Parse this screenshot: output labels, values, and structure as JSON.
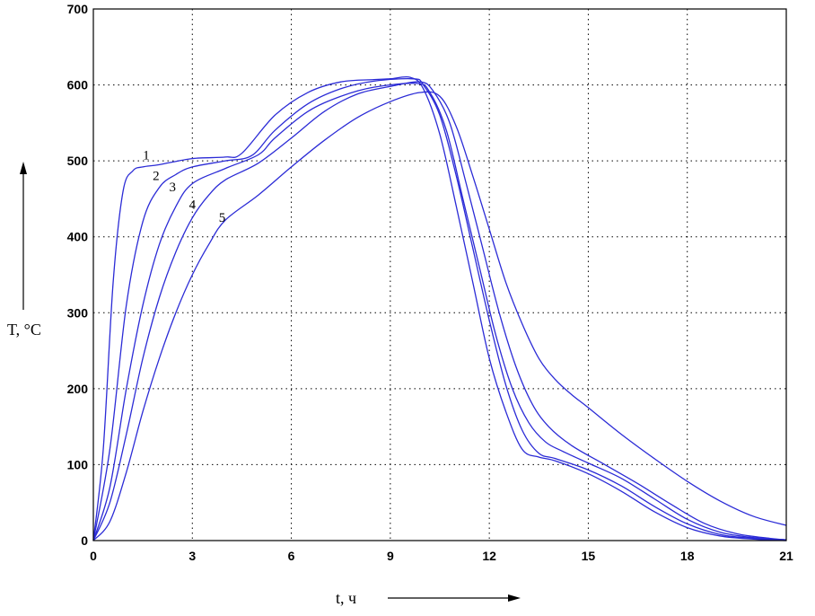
{
  "chart_data": {
    "type": "line",
    "xlabel": "t, ч",
    "ylabel": "T, °C",
    "xlim": [
      0,
      21
    ],
    "ylim": [
      0,
      700
    ],
    "xticks": [
      0,
      3,
      6,
      9,
      12,
      15,
      18,
      21
    ],
    "yticks": [
      0,
      100,
      200,
      300,
      400,
      500,
      600,
      700
    ],
    "grid": true,
    "line_color": "#2b2bd6",
    "series": [
      {
        "name": "1",
        "x": [
          0,
          0.3,
          0.6,
          0.9,
          1.2,
          1.5,
          2,
          3,
          4,
          4.5,
          5.5,
          6.5,
          7.5,
          8.5,
          9,
          9.6,
          10,
          10.5,
          11,
          11.5,
          12,
          12.5,
          13,
          13.5,
          14,
          15,
          16,
          17,
          18,
          19,
          20,
          21
        ],
        "y": [
          0,
          120,
          340,
          460,
          487,
          492,
          495,
          503,
          505,
          510,
          560,
          590,
          604,
          607,
          608,
          610,
          595,
          535,
          440,
          340,
          240,
          170,
          120,
          110,
          105,
          88,
          65,
          38,
          17,
          6,
          2,
          0
        ]
      },
      {
        "name": "2",
        "x": [
          0,
          0.5,
          1,
          1.5,
          2,
          2.5,
          3,
          4,
          4.8,
          5.5,
          6.5,
          7.5,
          8.5,
          9.7,
          10,
          10.5,
          11,
          11.5,
          12,
          12.5,
          13,
          13.5,
          14,
          15,
          16,
          17,
          18,
          19,
          20,
          21
        ],
        "y": [
          0,
          120,
          310,
          420,
          465,
          482,
          492,
          500,
          507,
          540,
          575,
          595,
          605,
          608,
          600,
          560,
          480,
          385,
          290,
          205,
          145,
          115,
          108,
          93,
          72,
          45,
          22,
          8,
          3,
          1
        ]
      },
      {
        "name": "3",
        "x": [
          0,
          0.5,
          1,
          1.5,
          2,
          2.5,
          3,
          4,
          5,
          5.5,
          6.5,
          7.5,
          8.5,
          9.8,
          10.2,
          10.7,
          11.2,
          11.7,
          12.2,
          12.7,
          13.2,
          13.7,
          14.2,
          15,
          16,
          17,
          18,
          19,
          20,
          21
        ],
        "y": [
          0,
          70,
          200,
          310,
          390,
          440,
          470,
          490,
          508,
          530,
          565,
          585,
          597,
          602,
          590,
          540,
          450,
          360,
          270,
          200,
          155,
          130,
          118,
          102,
          82,
          55,
          28,
          11,
          4,
          1
        ]
      },
      {
        "name": "4",
        "x": [
          0,
          0.5,
          1,
          1.5,
          2,
          2.5,
          3,
          3.5,
          4,
          5,
          6,
          7,
          8,
          9,
          9.9,
          10.3,
          10.8,
          11.3,
          11.8,
          12.3,
          12.8,
          13.3,
          13.8,
          14.5,
          15.5,
          16.5,
          17.5,
          18.5,
          19.5,
          20.5,
          21
        ],
        "y": [
          0,
          50,
          140,
          240,
          320,
          380,
          425,
          455,
          475,
          497,
          530,
          565,
          588,
          598,
          604,
          592,
          550,
          470,
          385,
          300,
          230,
          180,
          150,
          125,
          100,
          75,
          48,
          23,
          9,
          3,
          1
        ]
      },
      {
        "name": "5",
        "x": [
          0,
          0.5,
          1,
          1.5,
          2,
          2.5,
          3,
          3.5,
          4,
          5,
          6,
          7,
          8,
          9,
          9.9,
          10.5,
          11,
          11.5,
          12,
          12.5,
          13,
          13.5,
          14,
          14.5,
          15,
          16,
          17,
          18,
          19,
          20,
          21
        ],
        "y": [
          0,
          25,
          90,
          170,
          240,
          300,
          350,
          390,
          422,
          455,
          492,
          527,
          557,
          578,
          590,
          585,
          545,
          480,
          410,
          340,
          285,
          240,
          212,
          192,
          175,
          140,
          108,
          78,
          52,
          32,
          20
        ]
      }
    ],
    "curve_labels": [
      {
        "text": "1",
        "x": 1.5,
        "y": 502
      },
      {
        "text": "2",
        "x": 1.8,
        "y": 475
      },
      {
        "text": "3",
        "x": 2.3,
        "y": 460
      },
      {
        "text": "4",
        "x": 2.9,
        "y": 437
      },
      {
        "text": "5",
        "x": 3.8,
        "y": 420
      }
    ]
  }
}
